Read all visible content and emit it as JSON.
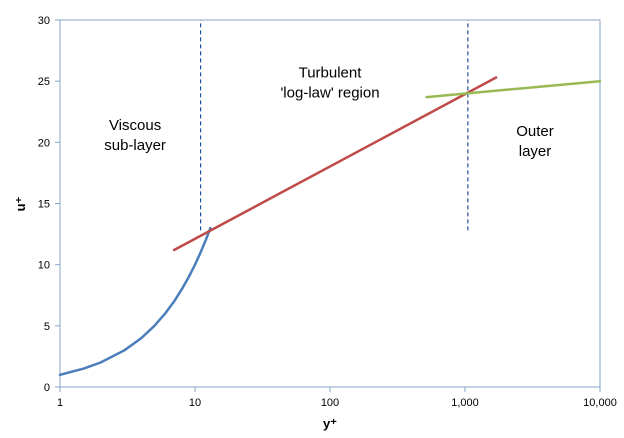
{
  "chart_data": {
    "type": "line",
    "title": "",
    "xlabel": "y⁺",
    "ylabel": "u⁺",
    "xscale": "log",
    "xlim": [
      1,
      10000
    ],
    "ylim": [
      0,
      30
    ],
    "x_ticks": [
      1,
      10,
      100,
      1000,
      10000
    ],
    "x_tick_labels": [
      "1",
      "10",
      "100",
      "1,000",
      "10,000"
    ],
    "y_ticks": [
      0,
      5,
      10,
      15,
      20,
      25,
      30
    ],
    "y_tick_labels": [
      "0",
      "5",
      "10",
      "15",
      "20",
      "25",
      "30"
    ],
    "grid": false,
    "legend": "none",
    "series": [
      {
        "color": "#4a7ebb",
        "x": [
          1,
          1.5,
          2,
          3,
          4,
          5,
          6,
          7,
          8,
          9,
          10,
          11,
          12,
          13
        ],
        "y": [
          1,
          1.5,
          2,
          3,
          4,
          5,
          6,
          7,
          8,
          9,
          10,
          11,
          12,
          13
        ]
      },
      {
        "color": "#be4b48",
        "x": [
          7,
          1700
        ],
        "y": [
          11.2,
          25.3
        ]
      },
      {
        "color": "#98b954",
        "x": [
          520,
          10000
        ],
        "y": [
          23.7,
          25.0
        ]
      }
    ],
    "divider_lines": [
      {
        "x": 11,
        "y_from": 12.8,
        "y_to": 30,
        "color": "#1f4e9c",
        "style": "dashed"
      },
      {
        "x": 1050,
        "y_from": 12.8,
        "y_to": 30,
        "color": "#1f4e9c",
        "style": "dashed"
      }
    ],
    "annotations": [
      {
        "lines": [
          "Viscous",
          "sub-layer"
        ],
        "x": 3.6,
        "y": 21
      },
      {
        "lines": [
          "Turbulent",
          "'log-law' region"
        ],
        "x": 100,
        "y": 25.3
      },
      {
        "lines": [
          "Outer",
          "layer"
        ],
        "x": 3300,
        "y": 20.5
      }
    ]
  }
}
